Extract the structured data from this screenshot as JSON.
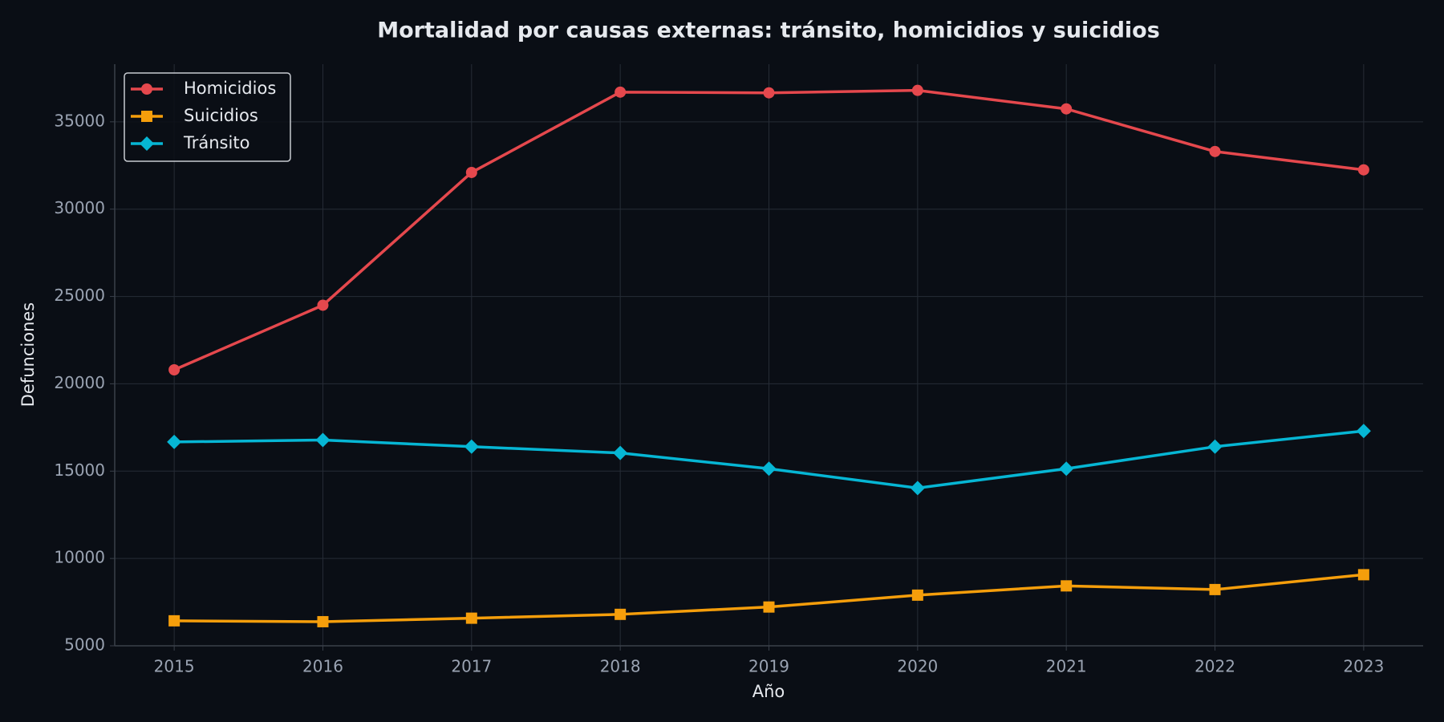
{
  "chart_data": {
    "type": "line",
    "title": "Mortalidad por causas externas: tránsito, homicidios y suicidios",
    "xlabel": "Año",
    "ylabel": "Defunciones",
    "x": [
      2015,
      2016,
      2017,
      2018,
      2019,
      2020,
      2021,
      2022,
      2023
    ],
    "series": [
      {
        "name": "Homicidios",
        "color": "#e5484d",
        "marker": "circle",
        "values": [
          20800,
          24500,
          32100,
          36700,
          36660,
          36800,
          35740,
          33300,
          32250
        ]
      },
      {
        "name": "Suicidios",
        "color": "#f59e0b",
        "marker": "square",
        "values": [
          6430,
          6380,
          6580,
          6800,
          7220,
          7900,
          8430,
          8220,
          9070
        ]
      },
      {
        "name": "Tránsito",
        "color": "#06b6d4",
        "marker": "diamond",
        "values": [
          16670,
          16780,
          16400,
          16040,
          15140,
          14030,
          15140,
          16400,
          17300
        ]
      }
    ],
    "xlim": [
      2014.6,
      2023.4
    ],
    "xticks": [
      2015,
      2016,
      2017,
      2018,
      2019,
      2020,
      2021,
      2022,
      2023
    ],
    "ylim": [
      5000,
      38300
    ],
    "yticks": [
      5000,
      10000,
      15000,
      20000,
      25000,
      30000,
      35000
    ],
    "grid": true,
    "legend": "upper left"
  }
}
